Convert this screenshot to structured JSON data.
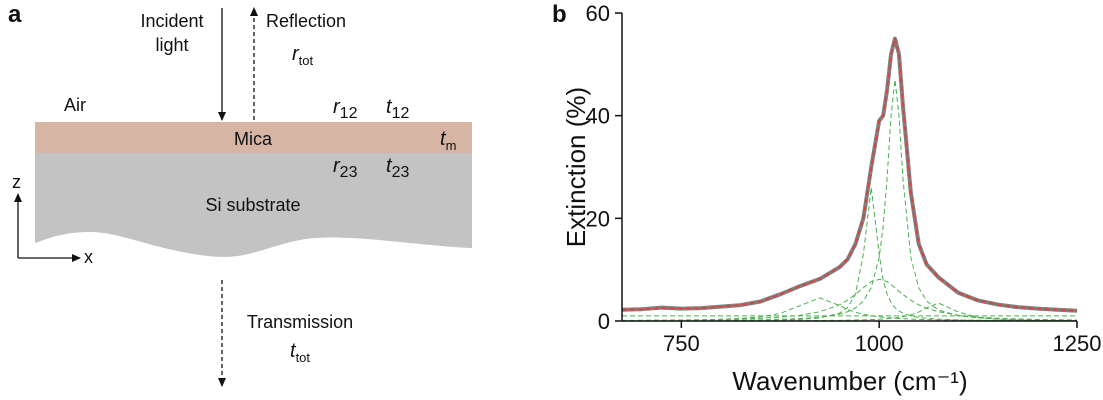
{
  "diagram": {
    "panel_label": "a",
    "incident": [
      "Incident",
      "light"
    ],
    "reflection": "Reflection",
    "r_tot": {
      "symbol": "r",
      "subscript": "tot"
    },
    "air": "Air",
    "r12": {
      "symbol": "r",
      "subscript": "12"
    },
    "t12": {
      "symbol": "t",
      "subscript": "12"
    },
    "mica": "Mica",
    "tm": {
      "symbol": "t",
      "subscript": "m"
    },
    "r23": {
      "symbol": "r",
      "subscript": "23"
    },
    "t23": {
      "symbol": "t",
      "subscript": "23"
    },
    "substrate": "Si substrate",
    "axis_z": "z",
    "axis_x": "x",
    "transmission": "Transmission",
    "t_tot": {
      "symbol": "t",
      "subscript": "tot"
    }
  },
  "chart_data": {
    "type": "line",
    "panel_label": "b",
    "x_label": "Wavenumber (cm⁻¹)",
    "y_label": "Extinction (%)",
    "xlim": [
      675,
      1250
    ],
    "ylim": [
      0,
      60
    ],
    "xticks": [
      750,
      1000,
      1250
    ],
    "yticks": [
      0,
      20,
      40,
      60
    ],
    "x": [
      675,
      700,
      725,
      750,
      775,
      800,
      825,
      850,
      875,
      900,
      925,
      950,
      960,
      970,
      980,
      990,
      1000,
      1005,
      1010,
      1015,
      1020,
      1025,
      1030,
      1040,
      1050,
      1060,
      1075,
      1100,
      1125,
      1150,
      1175,
      1200,
      1225,
      1250
    ],
    "series": [
      {
        "color": "#808080",
        "linestyle": "solid",
        "values": [
          2.2,
          2.3,
          2.6,
          2.4,
          2.5,
          2.8,
          3.1,
          3.8,
          5.2,
          6.8,
          8.2,
          10.5,
          12,
          15,
          20,
          30,
          39,
          40,
          45,
          52,
          55,
          52,
          42,
          25,
          15,
          11,
          8.5,
          5.5,
          4,
          3.2,
          2.7,
          2.4,
          2.2,
          2.0
        ]
      },
      {
        "color": "#e0403a",
        "linestyle": "dashed",
        "values": [
          2.2,
          2.3,
          2.5,
          2.4,
          2.5,
          2.8,
          3.1,
          3.8,
          5.2,
          6.8,
          8.2,
          10.5,
          12,
          15,
          20,
          30,
          39,
          40,
          45,
          52,
          55,
          52,
          42,
          25,
          15,
          11,
          8.5,
          5.5,
          4,
          3.2,
          2.7,
          2.4,
          2.2,
          2.0
        ]
      },
      {
        "color": "#4caf50",
        "linestyle": "dashed",
        "values": [
          0.06,
          0.07,
          0.08,
          0.09,
          0.11,
          0.14,
          0.18,
          0.23,
          0.32,
          0.47,
          0.73,
          1.34,
          1.8,
          2.56,
          3.88,
          6.5,
          12.4,
          18.4,
          27.8,
          40,
          47,
          40,
          27.8,
          12.4,
          6.5,
          3.88,
          2.13,
          1.04,
          0.61,
          0.4,
          0.28,
          0.21,
          0.16,
          0.13
        ]
      },
      {
        "color": "#4caf50",
        "linestyle": "dashed",
        "values": [
          0.03,
          0.03,
          0.04,
          0.05,
          0.06,
          0.07,
          0.09,
          0.13,
          0.19,
          0.32,
          0.6,
          1.53,
          2.6,
          5.2,
          13,
          26,
          13,
          8,
          5.2,
          3.6,
          2.6,
          1.96,
          1.53,
          1,
          0.7,
          0.52,
          0.36,
          0.21,
          0.14,
          0.1,
          0.08,
          0.06,
          0.05,
          0.04
        ]
      },
      {
        "color": "#4caf50",
        "linestyle": "dashed",
        "values": [
          0.12,
          0.14,
          0.17,
          0.2,
          0.24,
          0.31,
          0.41,
          0.54,
          0.75,
          1.12,
          1.8,
          3.15,
          4.05,
          5.18,
          6.48,
          7.65,
          8.1,
          7.97,
          7.65,
          7.11,
          6.48,
          5.8,
          5.18,
          4.05,
          3.15,
          2.48,
          1.8,
          1.12,
          0.75,
          0.54,
          0.41,
          0.31,
          0.24,
          0.2
        ]
      },
      {
        "color": "#4caf50",
        "linestyle": "dashed",
        "values": [
          0.09,
          0.11,
          0.13,
          0.17,
          0.23,
          0.33,
          0.49,
          0.8,
          1.48,
          3,
          4.5,
          3,
          2.25,
          1.69,
          1.3,
          1.01,
          0.8,
          0.72,
          0.65,
          0.59,
          0.54,
          0.49,
          0.45,
          0.38,
          0.33,
          0.28,
          0.23,
          0.17,
          0.13,
          0.11,
          0.09,
          0.07,
          0.06,
          0.05
        ]
      },
      {
        "color": "#4caf50",
        "linestyle": "dashed",
        "values": [
          0.01,
          0.02,
          0.02,
          0.02,
          0.02,
          0.03,
          0.03,
          0.04,
          0.05,
          0.07,
          0.1,
          0.13,
          0.16,
          0.19,
          0.23,
          0.28,
          0.35,
          0.4,
          0.45,
          0.52,
          0.59,
          0.7,
          0.83,
          1.2,
          1.75,
          2.55,
          3.5,
          1.75,
          0.7,
          0.35,
          0.21,
          0.13,
          0.09,
          0.07
        ]
      },
      {
        "color": "#4caf50",
        "linestyle": "dashed",
        "values": [
          1,
          1,
          1,
          1,
          1,
          1,
          1,
          1,
          1,
          1,
          1,
          1,
          1,
          1,
          1,
          1,
          1,
          1,
          1,
          1,
          1,
          1,
          1,
          1,
          1,
          1,
          1,
          1,
          1,
          1,
          1,
          1,
          1,
          1
        ]
      }
    ]
  }
}
